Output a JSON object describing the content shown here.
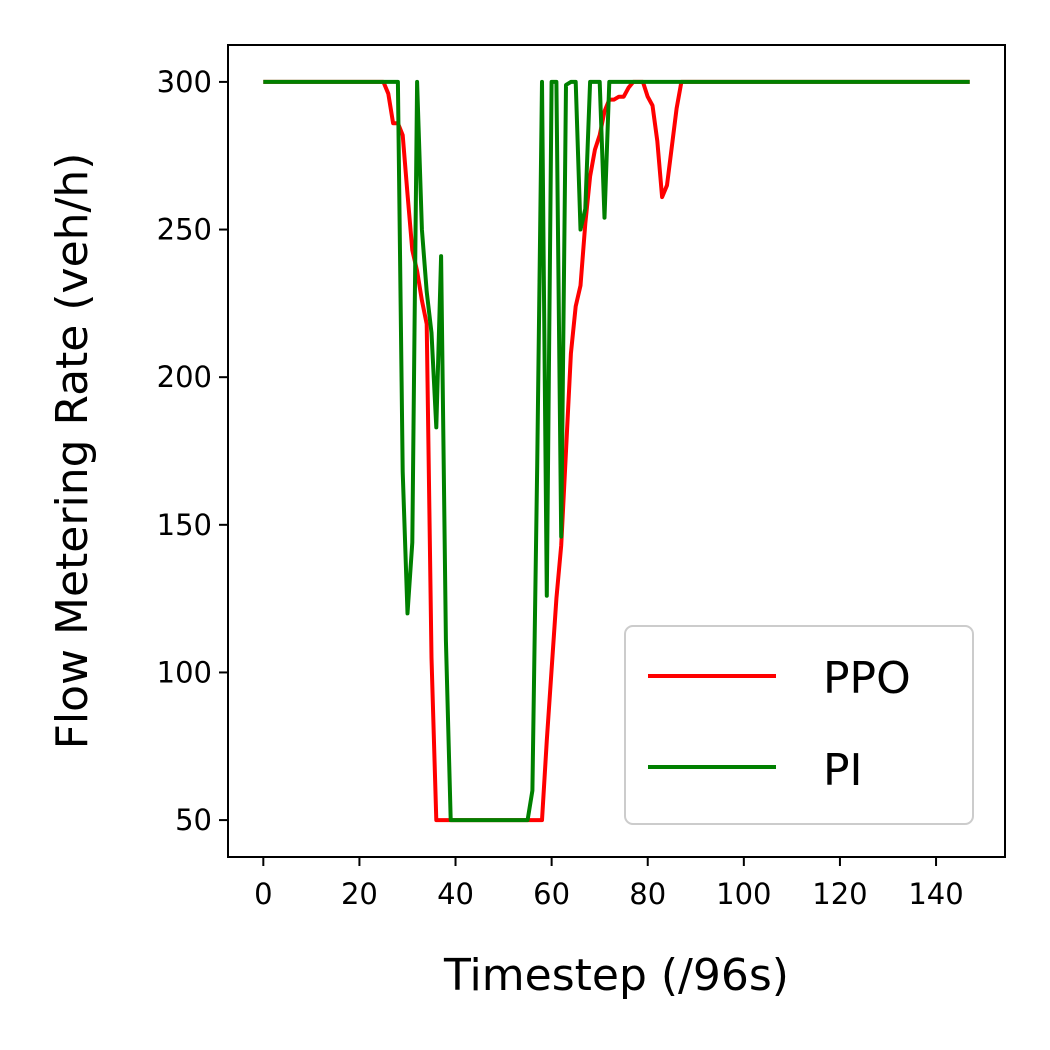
{
  "chart_data": {
    "type": "line",
    "xlabel": "Timestep (/96s)",
    "ylabel": "Flow Metering Rate (veh/h)",
    "xlim": [
      -7.35,
      154.35
    ],
    "ylim": [
      37.5,
      312.5
    ],
    "xticks": [
      0,
      20,
      40,
      60,
      80,
      100,
      120,
      140
    ],
    "yticks": [
      50,
      100,
      150,
      200,
      250,
      300
    ],
    "grid": false,
    "legend_position": "lower-right",
    "series": [
      {
        "name": "PPO",
        "color": "#ff0000",
        "points": [
          [
            0,
            300
          ],
          [
            24,
            300
          ],
          [
            25,
            300
          ],
          [
            26,
            296
          ],
          [
            27,
            286
          ],
          [
            28,
            286
          ],
          [
            29,
            282
          ],
          [
            30,
            262
          ],
          [
            31,
            243
          ],
          [
            32,
            236
          ],
          [
            33,
            226
          ],
          [
            34,
            218
          ],
          [
            35,
            105
          ],
          [
            36,
            50
          ],
          [
            37,
            50
          ],
          [
            40,
            50
          ],
          [
            45,
            50
          ],
          [
            50,
            50
          ],
          [
            55,
            50
          ],
          [
            57,
            50
          ],
          [
            58,
            50
          ],
          [
            59,
            77
          ],
          [
            60,
            101
          ],
          [
            61,
            125
          ],
          [
            62,
            143
          ],
          [
            63,
            175
          ],
          [
            64,
            208
          ],
          [
            65,
            224
          ],
          [
            66,
            231
          ],
          [
            67,
            252
          ],
          [
            68,
            268
          ],
          [
            69,
            277
          ],
          [
            70,
            282
          ],
          [
            71,
            290
          ],
          [
            72,
            294
          ],
          [
            73,
            294
          ],
          [
            74,
            295
          ],
          [
            75,
            295
          ],
          [
            76,
            298
          ],
          [
            77,
            300
          ],
          [
            78,
            300
          ],
          [
            79,
            300
          ],
          [
            80,
            295
          ],
          [
            81,
            292
          ],
          [
            82,
            280
          ],
          [
            83,
            261
          ],
          [
            84,
            265
          ],
          [
            85,
            278
          ],
          [
            86,
            291
          ],
          [
            87,
            300
          ],
          [
            88,
            300
          ],
          [
            100,
            300
          ],
          [
            120,
            300
          ],
          [
            140,
            300
          ],
          [
            147,
            300
          ]
        ]
      },
      {
        "name": "PI",
        "color": "#008000",
        "points": [
          [
            0,
            300
          ],
          [
            27,
            300
          ],
          [
            28,
            300
          ],
          [
            29,
            168
          ],
          [
            30,
            120
          ],
          [
            31,
            144
          ],
          [
            32,
            300
          ],
          [
            33,
            250
          ],
          [
            34,
            229
          ],
          [
            35,
            215
          ],
          [
            36,
            183
          ],
          [
            37,
            241
          ],
          [
            38,
            111
          ],
          [
            39,
            50
          ],
          [
            40,
            50
          ],
          [
            45,
            50
          ],
          [
            50,
            50
          ],
          [
            55,
            50
          ],
          [
            56,
            60
          ],
          [
            57,
            170
          ],
          [
            58,
            300
          ],
          [
            59,
            126
          ],
          [
            60,
            300
          ],
          [
            61,
            300
          ],
          [
            62,
            146
          ],
          [
            63,
            299
          ],
          [
            64,
            300
          ],
          [
            65,
            300
          ],
          [
            66,
            250
          ],
          [
            67,
            257
          ],
          [
            68,
            300
          ],
          [
            69,
            300
          ],
          [
            70,
            300
          ],
          [
            71,
            254
          ],
          [
            72,
            300
          ],
          [
            80,
            300
          ],
          [
            100,
            300
          ],
          [
            120,
            300
          ],
          [
            140,
            300
          ],
          [
            147,
            300
          ]
        ]
      }
    ]
  }
}
